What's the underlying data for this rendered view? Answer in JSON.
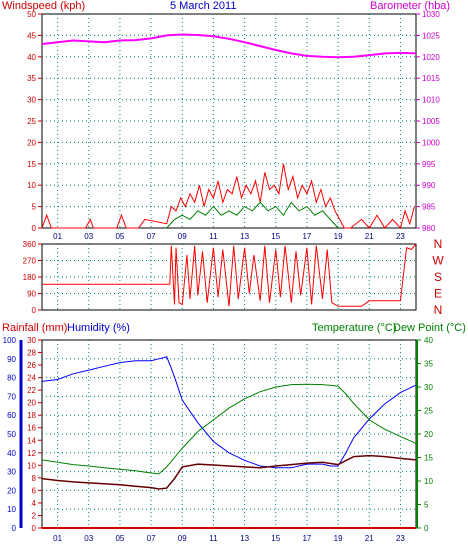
{
  "colors": {
    "windspeed": "#ff0000",
    "gust": "#008000",
    "barometer": "#ff00ff",
    "direction": "#ff0000",
    "humidity": "#0000ff",
    "temperature": "#008000",
    "dewpoint": "#660000",
    "rainfall": "#cc0000",
    "axis_red": "#cc0000",
    "axis_magenta": "#cc00cc",
    "axis_blue": "#0000cc",
    "axis_green": "#008000",
    "grid": "#008080"
  },
  "header": {
    "date": "5 March 2011",
    "windspeed_label": "Windspeed (kph)",
    "barometer_label": "Barometer (hba)"
  },
  "hour_labels": [
    "01",
    "03",
    "05",
    "07",
    "09",
    "11",
    "13",
    "15",
    "17",
    "19",
    "21",
    "23"
  ],
  "chart_data": [
    {
      "type": "line",
      "title": "5 March 2011",
      "x_range": [
        0,
        24
      ],
      "left_axis": {
        "label": "Windspeed (kph)",
        "range": [
          0,
          50
        ],
        "ticks": [
          "0",
          "5",
          "10",
          "15",
          "20",
          "25",
          "30",
          "35",
          "40",
          "45",
          "50"
        ]
      },
      "right_axis": {
        "label": "Barometer (hba)",
        "range": [
          980,
          1030
        ],
        "ticks": [
          "980",
          "985",
          "990",
          "995",
          "1000",
          "1005",
          "1010",
          "1015",
          "1020",
          "1025",
          "1030"
        ]
      },
      "series": [
        {
          "name": "Windspeed (kph)",
          "axis": "left",
          "x": [
            0,
            0.3,
            0.6,
            2.8,
            3.1,
            3.3,
            4.8,
            5.1,
            5.4,
            6.2,
            6.6,
            8.0,
            8.3,
            8.6,
            8.9,
            9.2,
            9.5,
            9.8,
            10.1,
            10.4,
            10.7,
            11.0,
            11.3,
            11.6,
            11.9,
            12.2,
            12.5,
            12.8,
            13.1,
            13.4,
            13.7,
            14.0,
            14.3,
            14.6,
            14.9,
            15.2,
            15.5,
            15.8,
            16.1,
            16.4,
            16.7,
            17.0,
            17.3,
            17.6,
            17.9,
            18.2,
            18.5,
            18.8,
            19.1,
            19.4,
            19.8,
            20.5,
            21.0,
            21.5,
            22.0,
            22.5,
            23.0,
            23.3,
            23.6,
            23.9
          ],
          "values": [
            0,
            3,
            0,
            0,
            2,
            0,
            0,
            3,
            0,
            0,
            2,
            1,
            5,
            4,
            7,
            5,
            8,
            6,
            10,
            5,
            9,
            7,
            11,
            6,
            9,
            8,
            12,
            7,
            10,
            8,
            11,
            6,
            13,
            9,
            10,
            8,
            15,
            9,
            12,
            7,
            10,
            8,
            11,
            6,
            9,
            5,
            7,
            4,
            2,
            0,
            0,
            2,
            0,
            3,
            0,
            2,
            0,
            4,
            1,
            5
          ]
        },
        {
          "name": "Gust",
          "axis": "left",
          "x": [
            8,
            8.5,
            9,
            9.5,
            10,
            10.5,
            11,
            11.5,
            12,
            12.5,
            13,
            13.5,
            14,
            14.5,
            15,
            15.5,
            16,
            16.5,
            17,
            17.5,
            18,
            18.5,
            19
          ],
          "values": [
            0,
            2,
            3,
            2,
            4,
            3,
            5,
            3,
            4,
            3,
            5,
            4,
            6,
            4,
            5,
            3,
            6,
            4,
            5,
            3,
            4,
            2,
            0
          ]
        },
        {
          "name": "Barometer (hba)",
          "axis": "right",
          "x": [
            0,
            1,
            2,
            3,
            4,
            5,
            6,
            7,
            8,
            9,
            10,
            11,
            12,
            13,
            14,
            15,
            16,
            17,
            18,
            19,
            20,
            21,
            22,
            23,
            24
          ],
          "values": [
            1023,
            1023.4,
            1023.8,
            1023.6,
            1023.4,
            1023.8,
            1023.9,
            1024.3,
            1025,
            1025.2,
            1025.1,
            1024.8,
            1024.2,
            1023.4,
            1022.5,
            1021.6,
            1020.8,
            1020.2,
            1020,
            1019.9,
            1020,
            1020.4,
            1020.8,
            1020.9,
            1020.8
          ]
        }
      ]
    },
    {
      "type": "line",
      "title": "",
      "x_range": [
        0,
        24
      ],
      "left_axis": {
        "range": [
          0,
          360
        ],
        "ticks": [
          "0",
          "90",
          "180",
          "270",
          "360"
        ]
      },
      "right_axis": {
        "ticks": [
          "N",
          "W",
          "S",
          "E",
          "N"
        ]
      },
      "series": [
        {
          "name": "Wind direction",
          "x": [
            0,
            8.2,
            8.3,
            8.5,
            8.6,
            8.8,
            9.0,
            9.3,
            9.5,
            9.8,
            10.0,
            10.3,
            10.6,
            11.0,
            11.3,
            11.6,
            12.0,
            12.3,
            12.6,
            13.0,
            13.3,
            13.6,
            14.0,
            14.3,
            14.6,
            15.0,
            15.3,
            15.6,
            16.0,
            16.3,
            16.6,
            17.0,
            17.3,
            17.6,
            18.0,
            18.3,
            18.6,
            19.0,
            19.3,
            20.5,
            21.0,
            23.0,
            23.4,
            23.7,
            24.0
          ],
          "values": [
            140,
            140,
            350,
            30,
            340,
            40,
            30,
            300,
            60,
            350,
            80,
            320,
            40,
            340,
            70,
            330,
            20,
            350,
            60,
            340,
            90,
            300,
            50,
            350,
            40,
            330,
            70,
            350,
            40,
            320,
            80,
            340,
            30,
            350,
            60,
            330,
            40,
            20,
            20,
            20,
            50,
            50,
            340,
            330,
            360
          ]
        }
      ]
    },
    {
      "type": "line",
      "title": "",
      "x_range": [
        0,
        24
      ],
      "axis_labels": {
        "rainfall": "Rainfall (mm)",
        "humidity": "Humidity (%)",
        "temperature": "Temperature (°C)",
        "dewpoint": "Dew Point (°C)"
      },
      "rainfall_axis": {
        "range": [
          0,
          30
        ],
        "ticks": [
          "0",
          "2",
          "4",
          "6",
          "8",
          "10",
          "12",
          "14",
          "16",
          "18",
          "20",
          "22",
          "24",
          "26",
          "28",
          "30"
        ]
      },
      "humidity_axis": {
        "range": [
          0,
          100
        ],
        "ticks": [
          "0",
          "10",
          "20",
          "30",
          "40",
          "50",
          "60",
          "70",
          "80",
          "90",
          "100"
        ]
      },
      "temperature_axis": {
        "range": [
          0,
          40
        ],
        "ticks": [
          "0",
          "5",
          "10",
          "15",
          "20",
          "25",
          "30",
          "35",
          "40"
        ]
      },
      "series": [
        {
          "name": "Humidity (%)",
          "axis": "humidity",
          "x": [
            0,
            1,
            2,
            3,
            4,
            5,
            6,
            7,
            7.5,
            8,
            8.3,
            8.6,
            9,
            10,
            11,
            12,
            13,
            14,
            15,
            16,
            17,
            18,
            18.5,
            19,
            19.5,
            20,
            21,
            22,
            23,
            24
          ],
          "values": [
            78,
            79,
            82,
            84,
            86,
            88,
            89,
            89,
            90,
            91,
            85,
            78,
            68,
            56,
            46,
            40,
            36,
            33,
            32,
            32,
            34,
            34,
            33,
            33,
            40,
            48,
            58,
            66,
            72,
            76
          ]
        },
        {
          "name": "Temperature (°C)",
          "axis": "temperature",
          "x": [
            0,
            1,
            2,
            3,
            4,
            5,
            6,
            7,
            7.5,
            8,
            9,
            10,
            11,
            12,
            13,
            14,
            15,
            16,
            17,
            18,
            19,
            19.5,
            20,
            21,
            22,
            23,
            24
          ],
          "values": [
            14.5,
            14,
            13.5,
            13.2,
            12.8,
            12.5,
            12.2,
            11.7,
            11.5,
            13,
            17,
            20.5,
            23,
            25.5,
            27.5,
            29,
            30,
            30.5,
            30.6,
            30.5,
            30.2,
            28.5,
            26.5,
            23,
            21,
            19.5,
            18
          ]
        },
        {
          "name": "Dew Point (°C)",
          "axis": "temperature",
          "x": [
            0,
            1,
            2,
            3,
            4,
            5,
            6,
            7,
            7.5,
            8,
            8.5,
            9,
            10,
            11,
            12,
            13,
            14,
            15,
            16,
            17,
            18,
            19,
            20,
            21,
            22,
            23,
            24
          ],
          "values": [
            10.5,
            10.1,
            9.8,
            9.6,
            9.4,
            9.2,
            8.9,
            8.6,
            8.3,
            8.5,
            10.5,
            13,
            13.6,
            13.4,
            13.2,
            13,
            12.8,
            13.2,
            13.5,
            13.8,
            14,
            13.5,
            15.2,
            15.4,
            15.2,
            14.8,
            14.5
          ]
        },
        {
          "name": "Rainfall (mm)",
          "axis": "rainfall",
          "x": [
            0,
            24
          ],
          "values": [
            0,
            0
          ]
        }
      ]
    }
  ]
}
